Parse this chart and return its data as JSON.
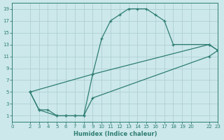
{
  "xlabel": "Humidex (Indice chaleur)",
  "bg_color": "#cce8ea",
  "line_color": "#2e7d74",
  "grid_color": "#b0d0d4",
  "xlim": [
    0,
    23
  ],
  "ylim": [
    0,
    20
  ],
  "xticks": [
    0,
    2,
    3,
    4,
    5,
    6,
    7,
    8,
    9,
    10,
    11,
    12,
    13,
    14,
    15,
    16,
    17,
    18,
    19,
    20,
    22,
    23
  ],
  "yticks": [
    1,
    3,
    5,
    7,
    9,
    11,
    13,
    15,
    17,
    19
  ],
  "curve1_x": [
    2,
    3,
    4,
    5,
    6,
    7,
    8,
    9,
    10,
    11,
    12,
    13,
    14,
    15,
    16,
    17,
    18,
    22,
    23
  ],
  "curve1_y": [
    5,
    2,
    2,
    1,
    1,
    1,
    1,
    8,
    14,
    17,
    18,
    19,
    19,
    19,
    18,
    17,
    13,
    13,
    12
  ],
  "curve2_x": [
    2,
    9,
    22,
    23
  ],
  "curve2_y": [
    5,
    8,
    13,
    12
  ],
  "curve3_x": [
    2,
    3,
    5,
    6,
    7,
    8,
    9,
    22,
    23
  ],
  "curve3_y": [
    5,
    2,
    1,
    1,
    1,
    1,
    4,
    11,
    12
  ]
}
